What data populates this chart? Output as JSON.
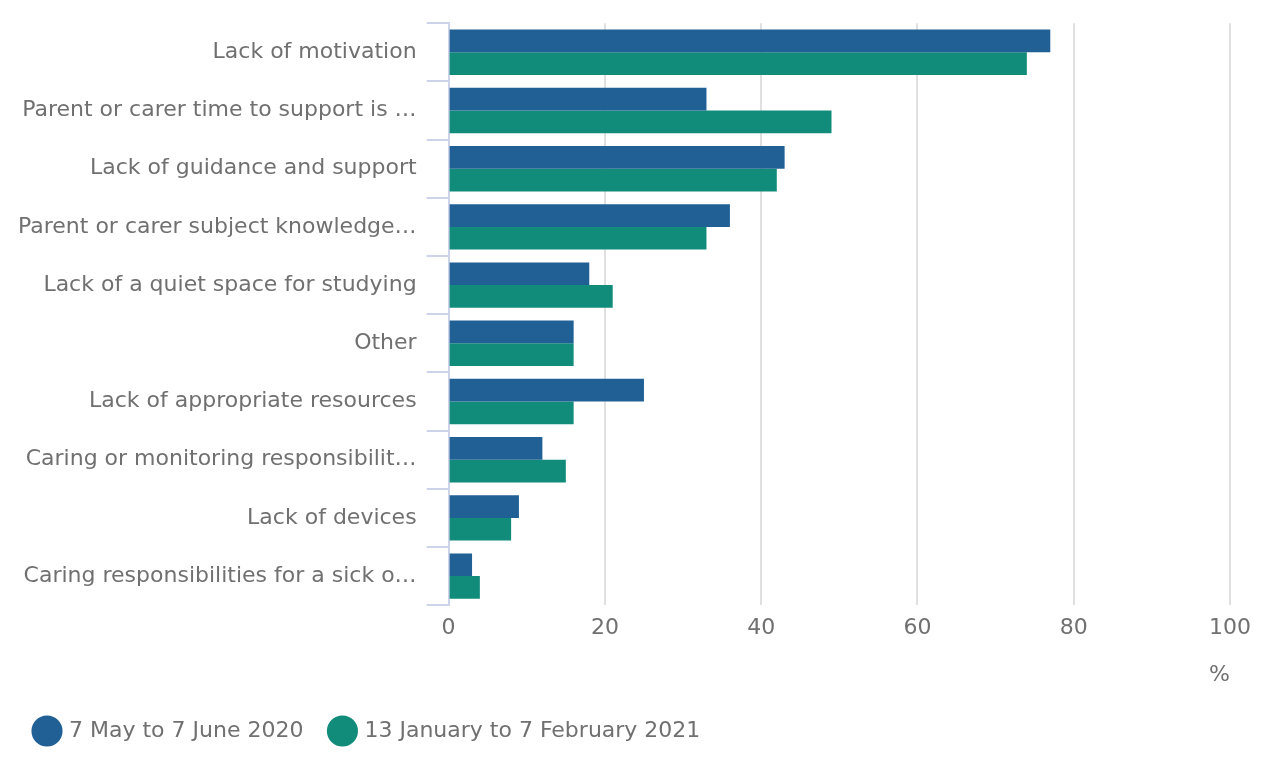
{
  "chart_data": {
    "type": "bar",
    "orientation": "horizontal",
    "categories": [
      "Lack of motivation",
      "Parent or carer time to support is …",
      "Lack of guidance and support",
      "Parent or carer subject knowledge…",
      "Lack of a quiet space for studying",
      "Other",
      "Lack of appropriate resources",
      "Caring or monitoring responsibilit…",
      "Lack of devices",
      "Caring responsibilities for a sick o…"
    ],
    "series": [
      {
        "name": "7 May to 7 June 2020",
        "color": "#206095",
        "values": [
          77,
          33,
          43,
          36,
          18,
          16,
          25,
          12,
          9,
          3
        ]
      },
      {
        "name": "13 January to 7 February 2021",
        "color": "#118c7b",
        "values": [
          74,
          49,
          42,
          33,
          21,
          16,
          16,
          15,
          8,
          4
        ]
      }
    ],
    "xlabel": "%",
    "xlim": [
      0,
      100
    ],
    "xticks": [
      0,
      20,
      40,
      60,
      80,
      100
    ],
    "grid": "x",
    "legend": "bottom"
  }
}
